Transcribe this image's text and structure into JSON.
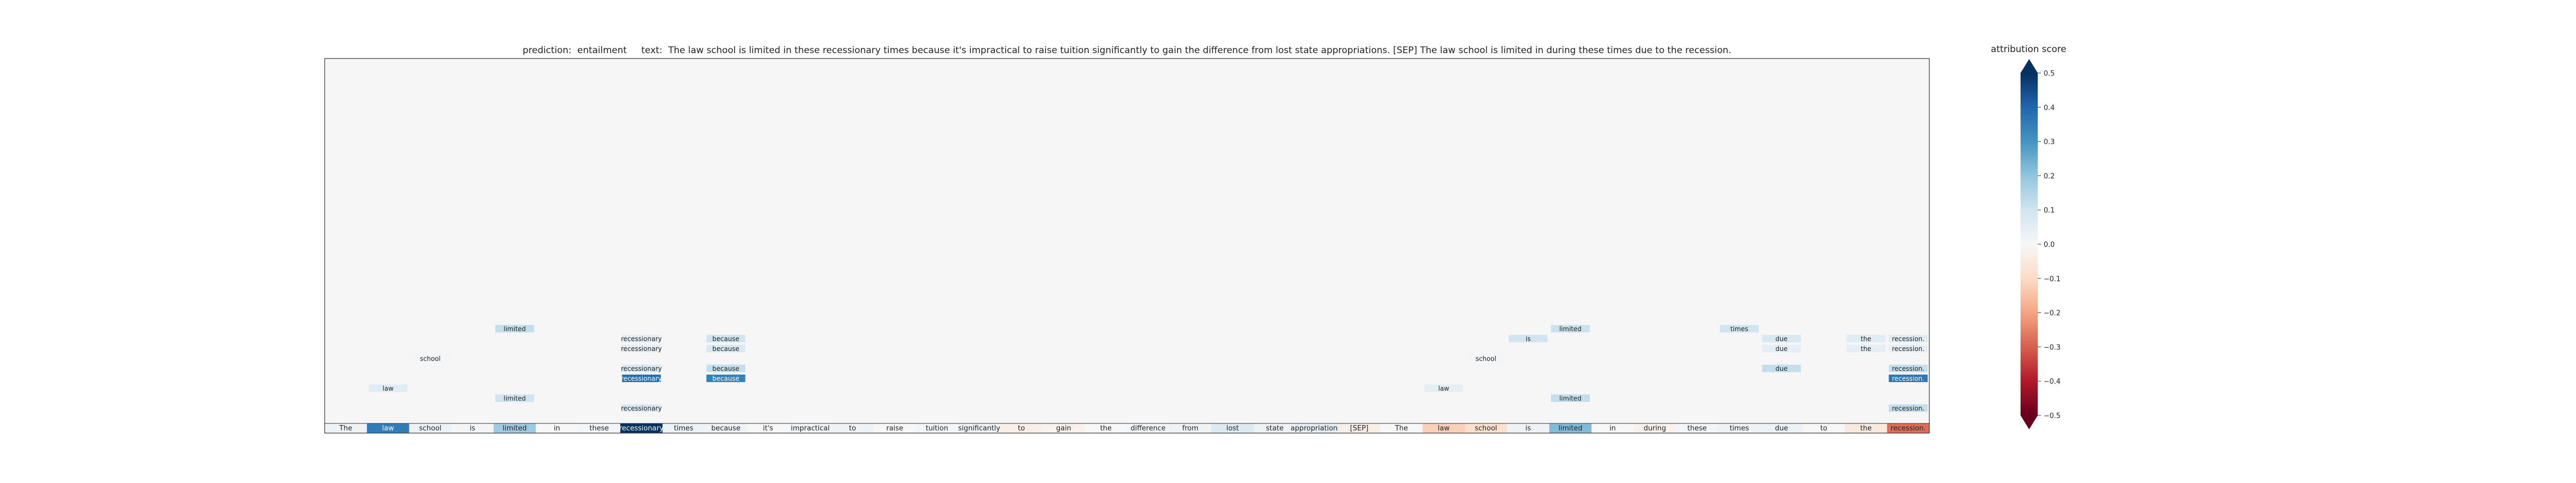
{
  "header": {
    "prediction_label": "prediction:",
    "prediction_value": "entailment",
    "text_label": "text:",
    "text_value": "The law school is limited in these recessionary times because it's impractical to raise tuition significantly to gain the difference from lost state appropriations. [SEP] The law school is limited in during these times due to the recession."
  },
  "chart_data": {
    "type": "heatmap",
    "tokens": [
      "The",
      "law",
      "school",
      "is",
      "limited",
      "in",
      "these",
      "recessionary",
      "times",
      "because",
      "it's",
      "impractical",
      "to",
      "raise",
      "tuition",
      "significantly",
      "to",
      "gain",
      "the",
      "difference",
      "from",
      "lost",
      "state",
      "appropriations.",
      "[SEP]",
      "The",
      "law",
      "school",
      "is",
      "limited",
      "in",
      "during",
      "these",
      "times",
      "due",
      "to",
      "the",
      "recession."
    ],
    "token_attributions": [
      0.02,
      0.35,
      0.03,
      0.01,
      0.18,
      0.0,
      0.01,
      0.5,
      0.03,
      0.02,
      0.0,
      0.01,
      0.02,
      0.0,
      0.01,
      0.02,
      -0.03,
      -0.02,
      0.0,
      0.01,
      0.02,
      0.07,
      0.03,
      0.05,
      -0.03,
      0.0,
      -0.12,
      -0.08,
      0.02,
      0.22,
      0.0,
      -0.02,
      0.01,
      0.02,
      0.03,
      0.0,
      -0.05,
      -0.28
    ],
    "related_tokens": [
      {
        "col": 1,
        "level": 3,
        "text": "law",
        "score": 0.06
      },
      {
        "col": 2,
        "level": 6,
        "text": "school",
        "score": 0.01
      },
      {
        "col": 4,
        "level": 9,
        "text": "limited",
        "score": 0.12
      },
      {
        "col": 4,
        "level": 2,
        "text": "limited",
        "score": 0.1
      },
      {
        "col": 7,
        "level": 8,
        "text": "recessionary",
        "score": 0.05
      },
      {
        "col": 7,
        "level": 7,
        "text": "recessionary",
        "score": 0.05
      },
      {
        "col": 7,
        "level": 5,
        "text": "recessionary",
        "score": 0.08
      },
      {
        "col": 7,
        "level": 4,
        "text": "recessionary",
        "score": 0.38
      },
      {
        "col": 7,
        "level": 1,
        "text": "recessionary",
        "score": 0.08
      },
      {
        "col": 9,
        "level": 8,
        "text": "because",
        "score": 0.1
      },
      {
        "col": 9,
        "level": 7,
        "text": "because",
        "score": 0.08
      },
      {
        "col": 9,
        "level": 5,
        "text": "because",
        "score": 0.12
      },
      {
        "col": 9,
        "level": 4,
        "text": "because",
        "score": 0.34
      },
      {
        "col": 26,
        "level": 3,
        "text": "law",
        "score": 0.05
      },
      {
        "col": 27,
        "level": 6,
        "text": "school",
        "score": 0.01
      },
      {
        "col": 28,
        "level": 8,
        "text": "is",
        "score": 0.1
      },
      {
        "col": 29,
        "level": 9,
        "text": "limited",
        "score": 0.11
      },
      {
        "col": 29,
        "level": 2,
        "text": "limited",
        "score": 0.12
      },
      {
        "col": 33,
        "level": 9,
        "text": "times",
        "score": 0.1
      },
      {
        "col": 34,
        "level": 8,
        "text": "due",
        "score": 0.08
      },
      {
        "col": 34,
        "level": 7,
        "text": "due",
        "score": 0.05
      },
      {
        "col": 34,
        "level": 5,
        "text": "due",
        "score": 0.12
      },
      {
        "col": 36,
        "level": 8,
        "text": "the",
        "score": 0.06
      },
      {
        "col": 36,
        "level": 7,
        "text": "the",
        "score": 0.05
      },
      {
        "col": 37,
        "level": 8,
        "text": "recession.",
        "score": 0.06
      },
      {
        "col": 37,
        "level": 7,
        "text": "recession.",
        "score": 0.05
      },
      {
        "col": 37,
        "level": 5,
        "text": "recession.",
        "score": 0.12
      },
      {
        "col": 37,
        "level": 4,
        "text": "recession.",
        "score": 0.36
      },
      {
        "col": 37,
        "level": 1,
        "text": "recession.",
        "score": 0.12
      }
    ],
    "colorbar": {
      "title": "attribution score",
      "range": [
        -0.5,
        0.5
      ],
      "ticks": [
        "0.5",
        "0.4",
        "0.3",
        "0.2",
        "0.1",
        "0.0",
        "−0.1",
        "−0.2",
        "−0.3",
        "−0.4",
        "−0.5"
      ],
      "tick_values": [
        0.5,
        0.4,
        0.3,
        0.2,
        0.1,
        0.0,
        -0.1,
        -0.2,
        -0.3,
        -0.4,
        -0.5
      ],
      "colormap": "RdBu"
    },
    "background_color": "#f5f6f5"
  }
}
